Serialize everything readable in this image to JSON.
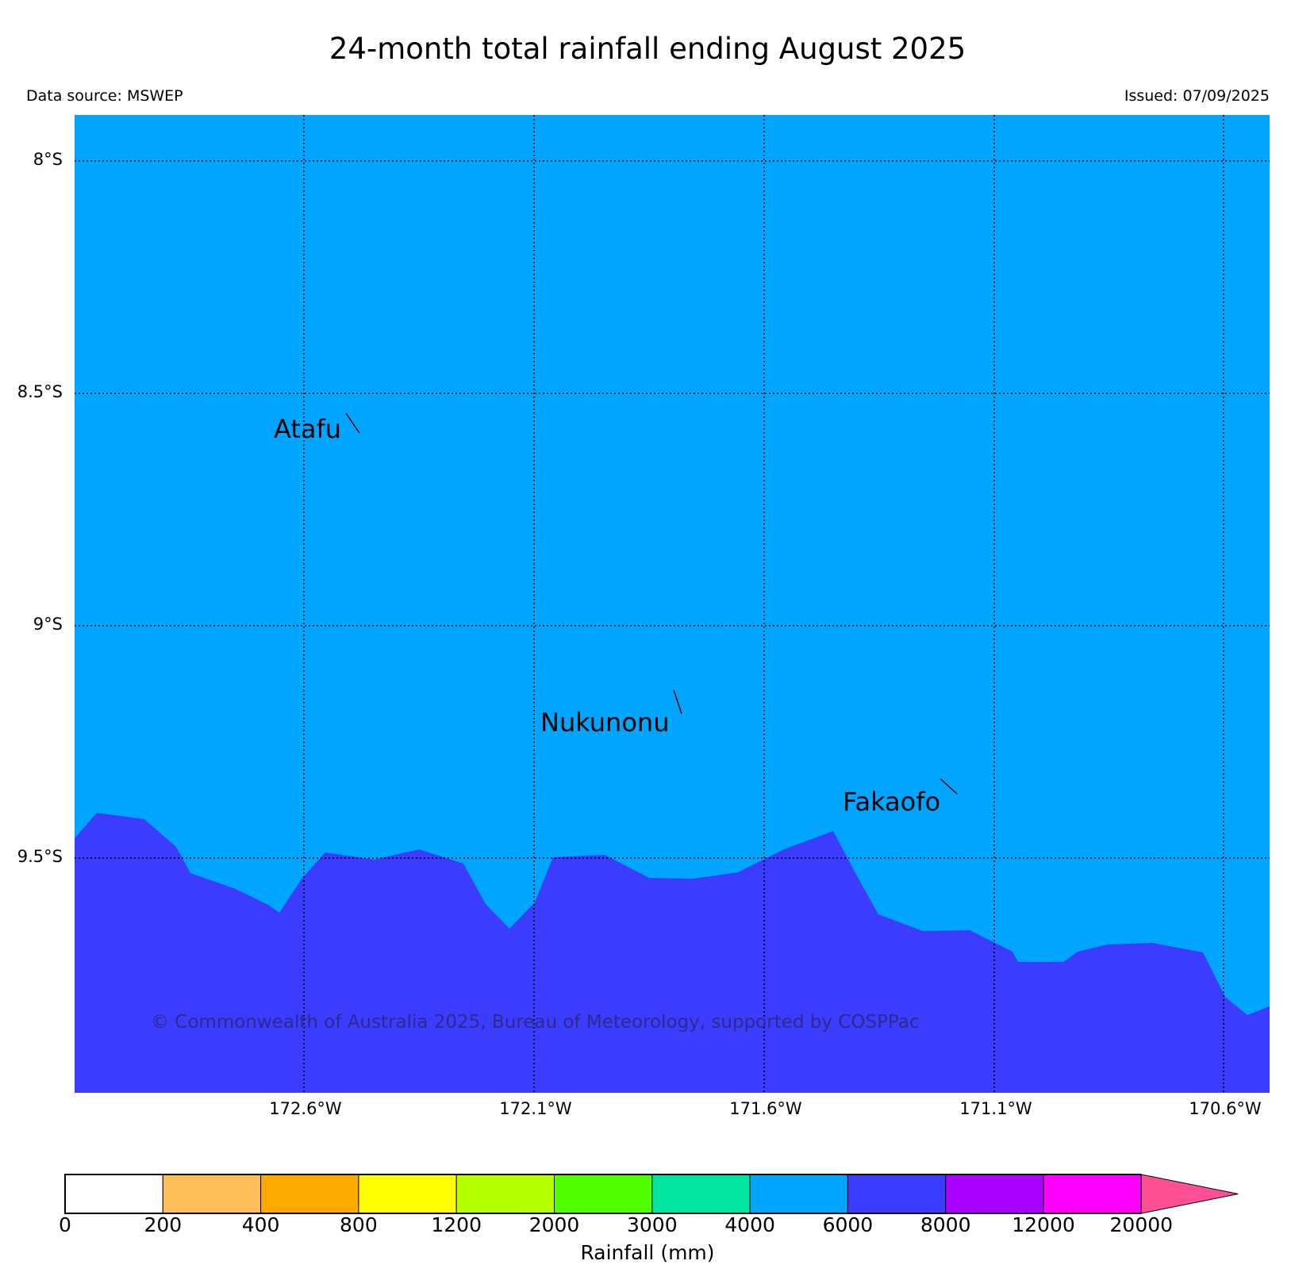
{
  "header": {
    "title": "24-month total rainfall ending August 2025",
    "data_source": "Data source: MSWEP",
    "issued": "Issued: 07/09/2025"
  },
  "map": {
    "latitude_labels": [
      "8°S",
      "8.5°S",
      "9°S",
      "9.5°S"
    ],
    "longitude_labels": [
      "172.6°W",
      "172.1°W",
      "171.6°W",
      "171.1°W",
      "170.6°W"
    ],
    "places": [
      "Atafu",
      "Nukunonu",
      "Fakaofo"
    ],
    "credit": "© Commonwealth of Australia 2025, Bureau of Meteorology, supported by COSPPac",
    "zones": [
      {
        "class": "4000-6000",
        "color": "#00a5ff"
      },
      {
        "class": "6000-8000",
        "color": "#3c3cff"
      }
    ]
  },
  "colorbar": {
    "title": "Rainfall (mm)",
    "ticks": [
      "0",
      "200",
      "400",
      "800",
      "1200",
      "2000",
      "3000",
      "4000",
      "6000",
      "8000",
      "12000",
      "20000"
    ],
    "colors": [
      "#ffffff",
      "#ffbe5a",
      "#ffaa00",
      "#ffff00",
      "#b4ff00",
      "#50ff00",
      "#00e6a0",
      "#00a5ff",
      "#3c3cff",
      "#aa00ff",
      "#ff00ff"
    ],
    "extend_color": "#ff5096"
  }
}
